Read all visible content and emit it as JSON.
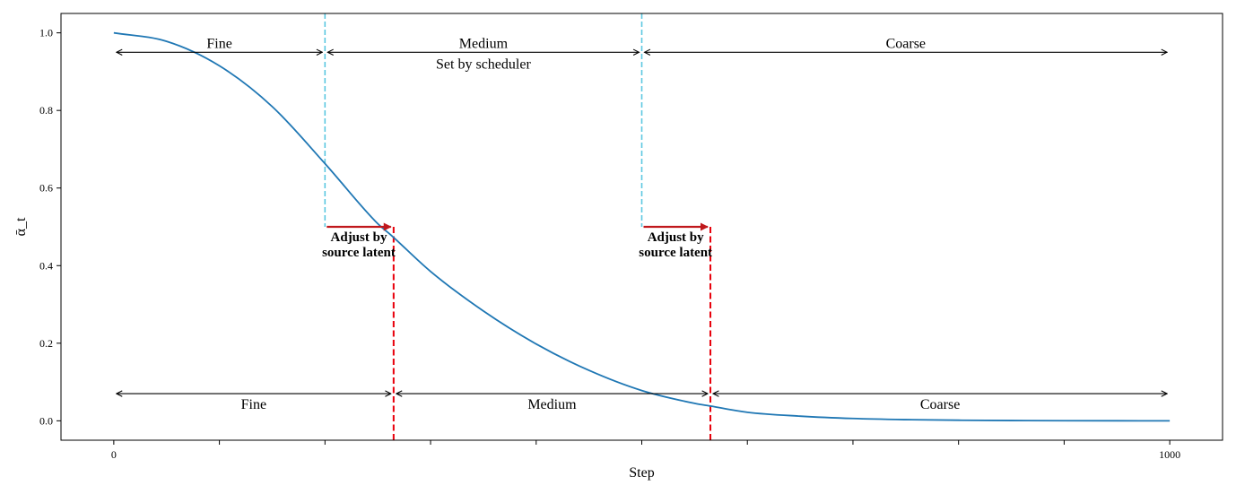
{
  "chart_data": {
    "type": "line",
    "title": "",
    "xlabel": "Step",
    "ylabel": "ᾱ_t",
    "xlim": [
      -50,
      1050
    ],
    "ylim": [
      -0.05,
      1.05
    ],
    "grid": false,
    "x_ticks": [
      0,
      100,
      200,
      300,
      400,
      500,
      600,
      700,
      800,
      900,
      1000
    ],
    "x_tick_labels": [
      "0",
      "",
      "",
      "",
      "",
      "",
      "",
      "",
      "",
      "",
      "1000"
    ],
    "y_ticks": [
      0.0,
      0.2,
      0.4,
      0.6,
      0.8,
      1.0
    ],
    "y_tick_labels": [
      "0.0",
      "0.2",
      "0.4",
      "0.6",
      "0.8",
      "1.0"
    ],
    "series": [
      {
        "color": "#1f77b4",
        "x": [
          0,
          50,
          100,
          150,
          200,
          250,
          262,
          300,
          350,
          400,
          450,
          500,
          550,
          565,
          600,
          650,
          700,
          750,
          800,
          850,
          900,
          950,
          1000
        ],
        "y": [
          1.0,
          0.978,
          0.915,
          0.81,
          0.663,
          0.508,
          0.48,
          0.385,
          0.283,
          0.198,
          0.13,
          0.078,
          0.045,
          0.038,
          0.022,
          0.012,
          0.006,
          0.003,
          0.0015,
          0.0007,
          0.0003,
          0.0001,
          0.0
        ]
      }
    ],
    "scheduler_boundaries": {
      "color": "#5bc8e0",
      "x": [
        200,
        500
      ],
      "y_bottom": 0.5
    },
    "adjusted_boundaries": {
      "color": "#e8000b",
      "x": [
        265,
        565
      ],
      "y_top": 0.5
    },
    "adjust_arrows": [
      {
        "from": 200,
        "to": 265,
        "y": 0.5,
        "color": "#c0181c"
      },
      {
        "from": 500,
        "to": 565,
        "y": 0.5,
        "color": "#c0181c"
      }
    ],
    "top_ranges": [
      {
        "from": 0,
        "to": 200,
        "label": "Fine"
      },
      {
        "from": 200,
        "to": 500,
        "label": "Medium"
      },
      {
        "from": 500,
        "to": 1000,
        "label": "Coarse"
      }
    ],
    "top_ranges_y": 0.95,
    "top_caption": "Set by scheduler",
    "bottom_ranges": [
      {
        "from": 0,
        "to": 265,
        "label": "Fine"
      },
      {
        "from": 265,
        "to": 565,
        "label": "Medium"
      },
      {
        "from": 565,
        "to": 1000,
        "label": "Coarse"
      }
    ],
    "bottom_ranges_y": 0.07,
    "adjust_labels": [
      {
        "x": 232,
        "line1": "Adjust by",
        "line2": "source latent"
      },
      {
        "x": 532,
        "line1": "Adjust by",
        "line2": "source latent"
      }
    ]
  }
}
